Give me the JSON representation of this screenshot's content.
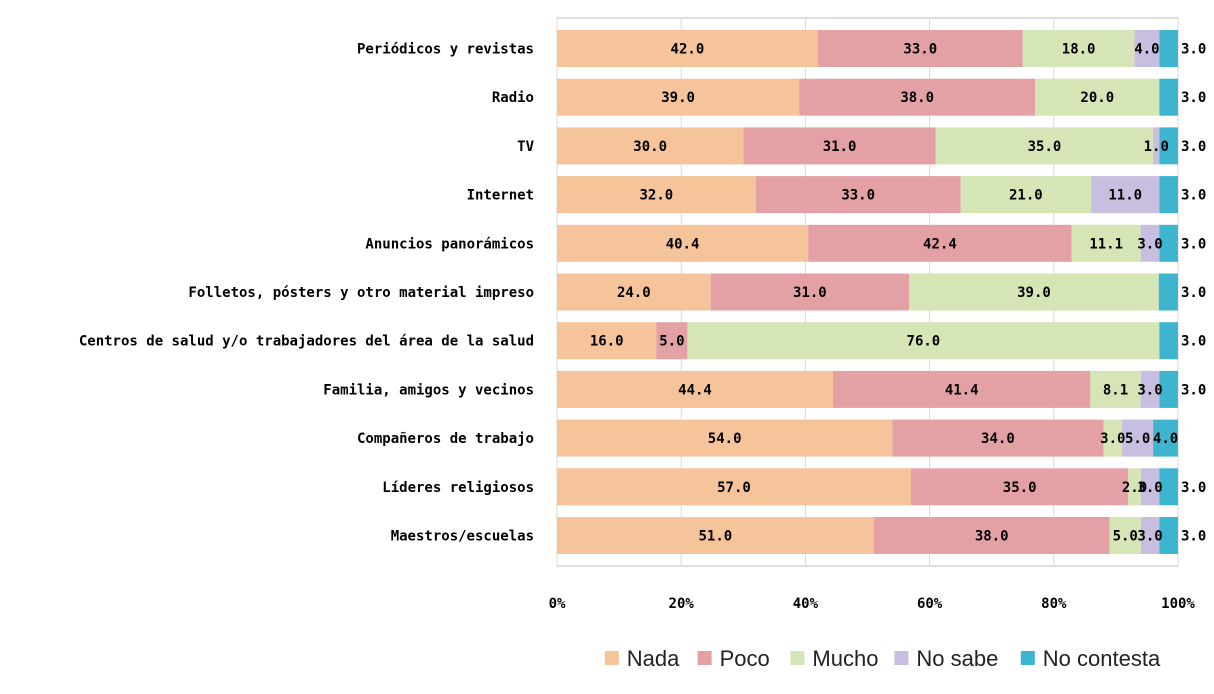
{
  "chart_data": {
    "type": "bar",
    "orientation": "horizontal",
    "stacked": "percent",
    "categories": [
      "Periódicos y revistas",
      "Radio",
      "TV",
      "Internet",
      "Anuncios panorámicos",
      "Folletos, pósters y otro material impreso",
      "Centros de salud y/o trabajadores del área de la salud",
      "Familia, amigos y vecinos",
      "Compañeros de trabajo",
      "Líderes religiosos",
      "Maestros/escuelas"
    ],
    "series": [
      {
        "name": "Nada",
        "color": "#F5C49B",
        "values": [
          42.0,
          39.0,
          30.0,
          32.0,
          40.4,
          24.0,
          16.0,
          44.4,
          54.0,
          57.0,
          51.0
        ]
      },
      {
        "name": "Poco",
        "color": "#E3A1A5",
        "values": [
          33.0,
          38.0,
          31.0,
          33.0,
          42.4,
          31.0,
          5.0,
          41.4,
          34.0,
          35.0,
          38.0
        ]
      },
      {
        "name": "Mucho",
        "color": "#D5E5B6",
        "values": [
          18.0,
          20.0,
          35.0,
          21.0,
          11.1,
          39.0,
          76.0,
          8.1,
          3.0,
          2.0,
          5.0
        ]
      },
      {
        "name": "No sabe",
        "color": "#C8BFE0",
        "values": [
          4.0,
          null,
          1.0,
          11.0,
          3.0,
          null,
          null,
          3.0,
          5.0,
          3.0,
          3.0
        ]
      },
      {
        "name": "No contesta",
        "color": "#3DB5CF",
        "values": [
          3.0,
          3.0,
          3.0,
          3.0,
          3.0,
          3.0,
          3.0,
          3.0,
          4.0,
          3.0,
          3.0
        ]
      }
    ],
    "x_ticks": [
      "0%",
      "20%",
      "40%",
      "60%",
      "80%",
      "100%"
    ],
    "xlim": [
      0,
      100
    ],
    "grid": true,
    "legend": "bottom"
  }
}
